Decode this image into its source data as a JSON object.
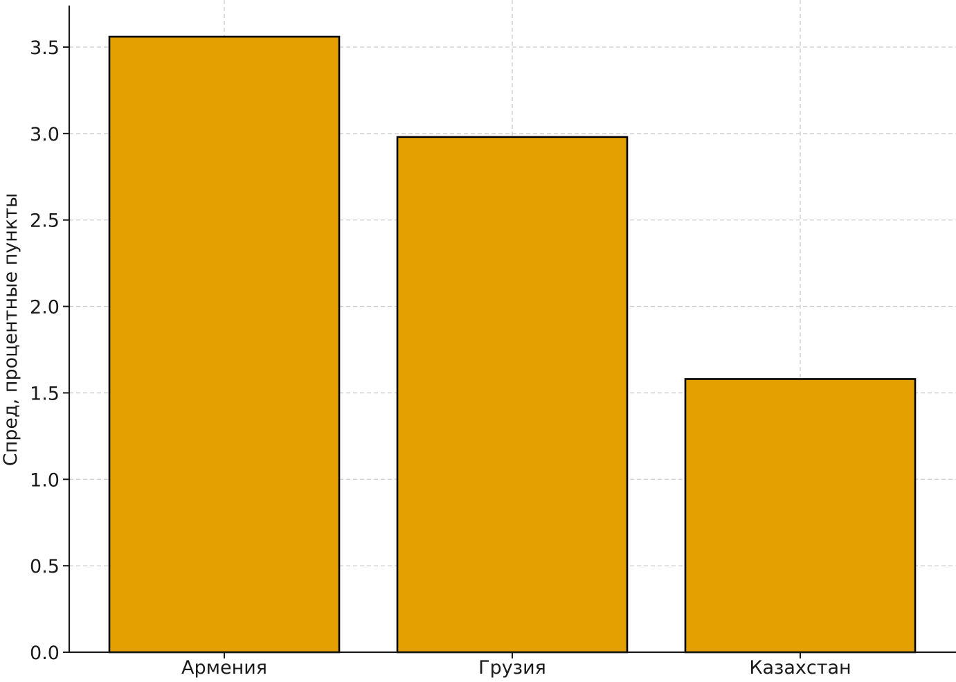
{
  "chart_data": {
    "type": "bar",
    "categories": [
      "Армения",
      "Грузия",
      "Казахстан"
    ],
    "values": [
      3.56,
      2.98,
      1.58
    ],
    "ylabel": "Спред, процентные пункты",
    "ylim": [
      0,
      3.7
    ],
    "yticks": [
      "0.0",
      "0.5",
      "1.0",
      "1.5",
      "2.0",
      "2.5",
      "3.0",
      "3.5"
    ],
    "grid": true,
    "colors": {
      "bar_fill": "#e49f00",
      "bar_edge": "#000000",
      "grid": "#cccccc",
      "axis": "#1a1a1a"
    }
  }
}
